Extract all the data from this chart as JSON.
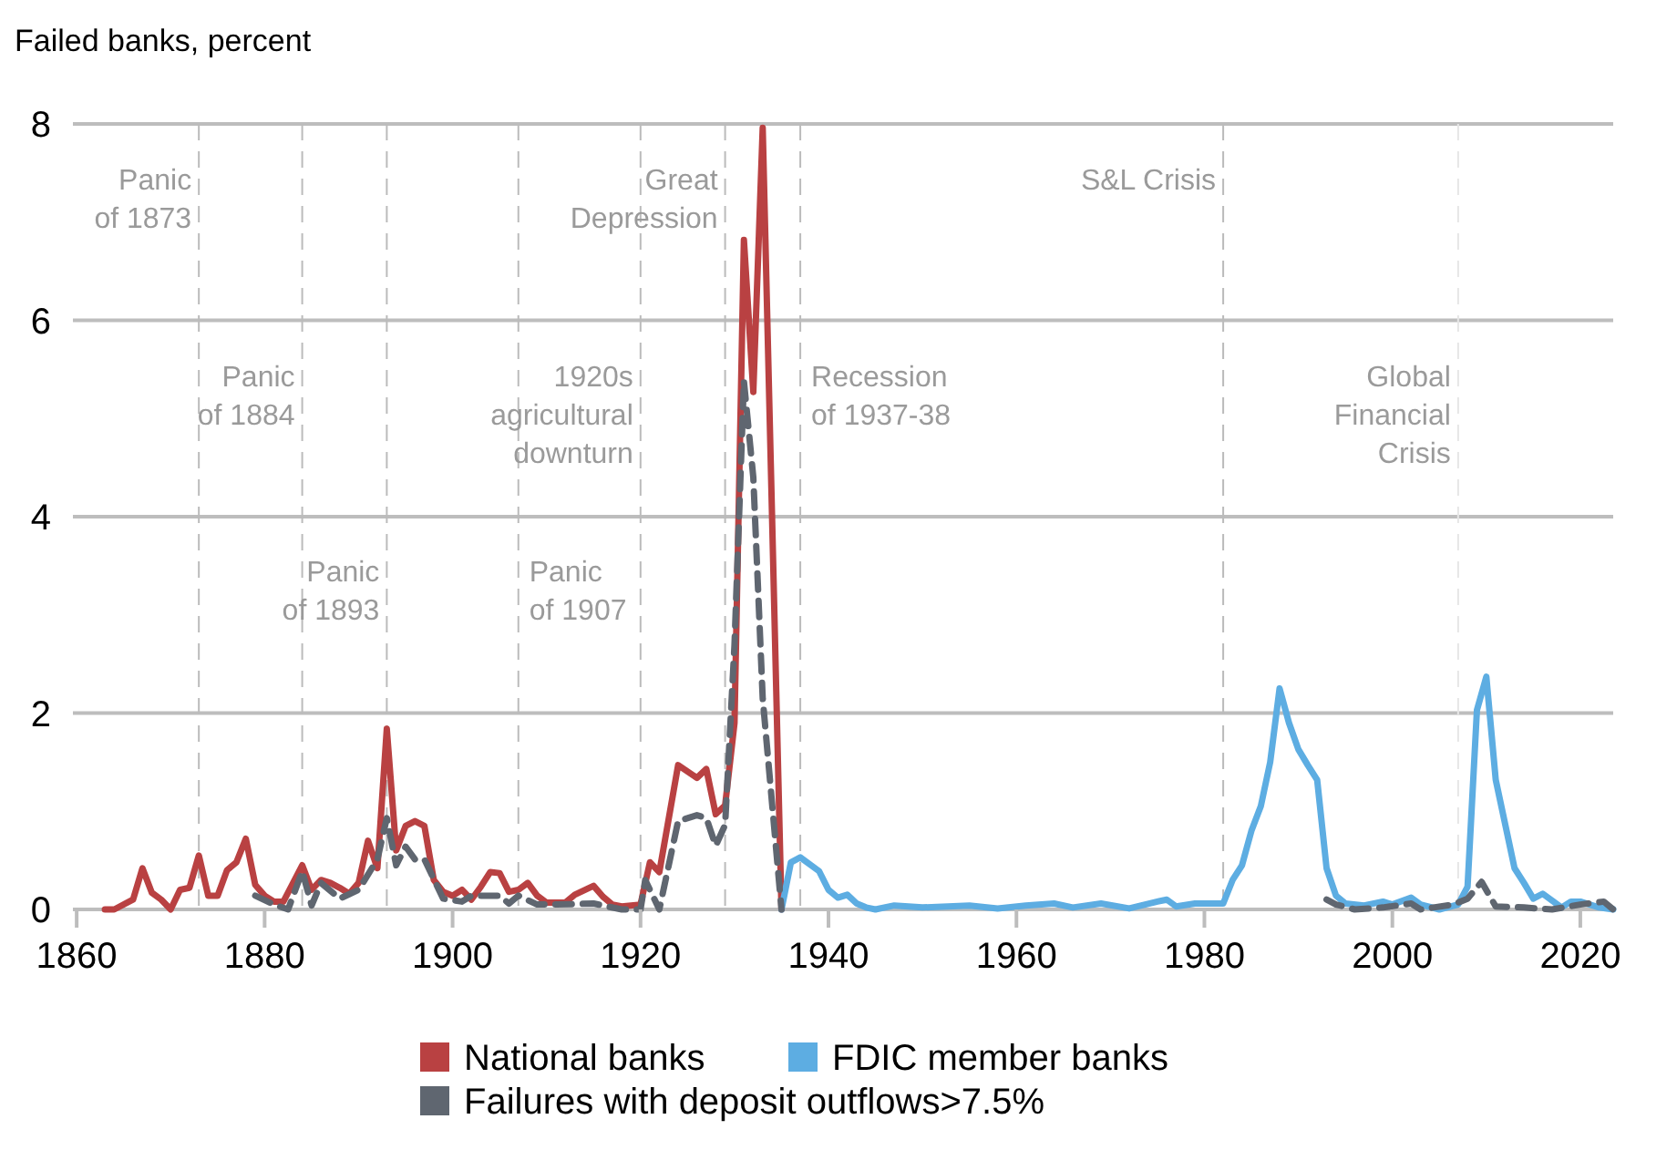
{
  "chart_data": {
    "type": "line",
    "ylabel": "Failed banks, percent",
    "xlim": [
      1859.6,
      2023.5
    ],
    "xticks": [
      1860,
      1880,
      1900,
      1920,
      1940,
      1960,
      1980,
      2000,
      2020
    ],
    "ylim": [
      0,
      8
    ],
    "yticks": [
      0,
      2,
      4,
      6,
      8
    ],
    "grid": "y",
    "legend": "bottom",
    "marker": "none",
    "series": [
      {
        "name": "National banks",
        "color": "#b94142",
        "line_style": "solid",
        "x": [
          1863,
          1864,
          1866,
          1867,
          1868,
          1869,
          1870,
          1871,
          1872,
          1873,
          1874,
          1875,
          1876,
          1877,
          1878,
          1879,
          1880,
          1881,
          1882,
          1884,
          1885,
          1886,
          1887,
          1888,
          1889,
          1890,
          1891,
          1892,
          1893,
          1894,
          1895,
          1896,
          1897,
          1898,
          1899,
          1900,
          1901,
          1902,
          1903,
          1904,
          1905,
          1906,
          1907,
          1908,
          1909,
          1910,
          1912,
          1913,
          1915,
          1916,
          1917,
          1918,
          1920,
          1921,
          1922,
          1924,
          1926,
          1927,
          1928,
          1929,
          1930,
          1931,
          1932,
          1933,
          1935
        ],
        "values": [
          0,
          0,
          0.1,
          0.42,
          0.17,
          0.1,
          0,
          0.2,
          0.22,
          0.55,
          0.14,
          0.14,
          0.4,
          0.48,
          0.72,
          0.25,
          0.14,
          0.08,
          0.08,
          0.45,
          0.2,
          0.3,
          0.27,
          0.22,
          0.16,
          0.27,
          0.7,
          0.42,
          1.84,
          0.6,
          0.85,
          0.9,
          0.85,
          0.3,
          0.18,
          0.14,
          0.2,
          0.1,
          0.23,
          0.38,
          0.37,
          0.18,
          0.2,
          0.27,
          0.14,
          0.07,
          0.07,
          0.15,
          0.24,
          0.13,
          0.05,
          0.03,
          0.05,
          0.48,
          0.38,
          1.47,
          1.34,
          1.43,
          0.97,
          1.06,
          1.9,
          6.82,
          5.27,
          7.96,
          0
        ]
      },
      {
        "name": "FDIC member banks",
        "color": "#5dade2",
        "line_style": "solid",
        "x": [
          1935,
          1936,
          1937,
          1939,
          1940,
          1941,
          1942,
          1943,
          1944,
          1945,
          1947,
          1950,
          1955,
          1958,
          1961,
          1964,
          1966,
          1969,
          1972,
          1975,
          1976,
          1977,
          1979,
          1982,
          1983,
          1984,
          1985,
          1986,
          1987,
          1988,
          1989,
          1990,
          1991,
          1992,
          1993,
          1994,
          1995,
          1997,
          1999,
          2000,
          2002,
          2003,
          2005,
          2007,
          2008,
          2009,
          2010,
          2011,
          2013,
          2014,
          2015,
          2016,
          2018,
          2019,
          2020,
          2022,
          2023.5
        ],
        "values": [
          0,
          0.48,
          0.53,
          0.39,
          0.2,
          0.12,
          0.15,
          0.06,
          0.02,
          0,
          0.04,
          0.02,
          0.04,
          0.01,
          0.04,
          0.06,
          0.02,
          0.06,
          0.01,
          0.08,
          0.1,
          0.03,
          0.06,
          0.06,
          0.3,
          0.45,
          0.8,
          1.05,
          1.5,
          2.25,
          1.9,
          1.63,
          1.47,
          1.32,
          0.42,
          0.14,
          0.06,
          0.04,
          0.08,
          0.05,
          0.12,
          0.05,
          0,
          0.05,
          0.23,
          2.03,
          2.37,
          1.32,
          0.42,
          0.27,
          0.11,
          0.16,
          0.02,
          0.08,
          0.08,
          0.02,
          0
        ]
      },
      {
        "name": "Failures with deposit outflows>7.5%",
        "color": "#5f6670",
        "line_style": "dashed",
        "x": [
          1879,
          1881,
          1882.5,
          1884,
          1885,
          1886,
          1888,
          1890,
          1892,
          1893,
          1894,
          1895,
          1896,
          1897,
          1899,
          1901,
          1902,
          1905,
          1906,
          1907,
          1909,
          1911,
          1915,
          1918,
          1920,
          1920.5,
          1922,
          1924,
          1926,
          1927,
          1928,
          1929,
          1930,
          1931,
          1932,
          1933,
          1935,
          1960,
          1993,
          1994,
          1996,
          1999,
          2002,
          2003,
          2006.5,
          2008,
          2009.5,
          2011,
          2014,
          2017,
          2020,
          2022.5,
          2023.5
        ],
        "values": [
          0.14,
          0.05,
          0,
          0.39,
          0.04,
          0.27,
          0.11,
          0.2,
          0.51,
          0.93,
          0.45,
          0.64,
          0.51,
          0.51,
          0.11,
          0.08,
          0.14,
          0.14,
          0.06,
          0.14,
          0.05,
          0.05,
          0.06,
          0,
          0,
          0.3,
          0,
          0.9,
          0.96,
          0.93,
          0.65,
          0.86,
          2.7,
          5.38,
          4.4,
          2.15,
          0,
          null,
          0.1,
          0.05,
          0,
          0.02,
          0.06,
          0,
          0.05,
          0.11,
          0.28,
          0.03,
          0.02,
          0,
          0.05,
          0.08,
          0
        ]
      }
    ],
    "ref_lines": [
      {
        "axis": "x",
        "value": 1873,
        "label": "Panic\nof 1873",
        "color": "#bbbbbb",
        "line_style": "dashed"
      },
      {
        "axis": "x",
        "value": 1884,
        "label": "Panic\nof 1884",
        "color": "#bbbbbb",
        "line_style": "dashed"
      },
      {
        "axis": "x",
        "value": 1893,
        "label": "Panic\nof 1893",
        "color": "#bbbbbb",
        "line_style": "dashed"
      },
      {
        "axis": "x",
        "value": 1907,
        "label": "Panic\nof 1907",
        "color": "#bbbbbb",
        "line_style": "dashed"
      },
      {
        "axis": "x",
        "value": 1920,
        "label": "1920s\nagricultural\ndownturn",
        "color": "#bbbbbb",
        "line_style": "dashed"
      },
      {
        "axis": "x",
        "value": 1929,
        "label": "Great\nDepression",
        "color": "#bbbbbb",
        "line_style": "dashed"
      },
      {
        "axis": "x",
        "value": 1937,
        "label": "Recession\nof 1937-38",
        "color": "#bbbbbb",
        "line_style": "dashed"
      },
      {
        "axis": "x",
        "value": 1982,
        "label": "S&L Crisis",
        "color": "#bbbbbb",
        "line_style": "dashed"
      },
      {
        "axis": "x",
        "value": 2007,
        "label": "Global\nFinancial\nCrisis",
        "color": "#e6e6e6",
        "line_style": "dashed"
      }
    ]
  }
}
